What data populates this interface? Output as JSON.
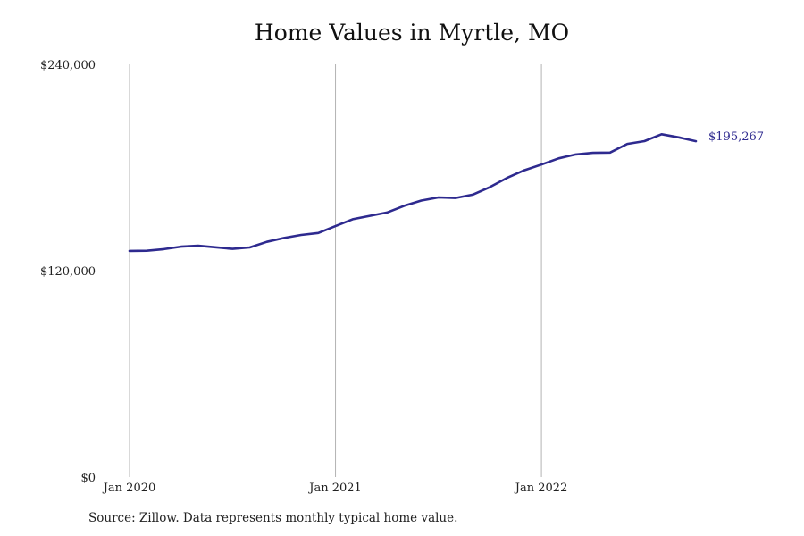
{
  "chart_data": {
    "type": "line",
    "title": "Home Values in Myrtle, MO",
    "xlabel": "",
    "ylabel": "",
    "ylim": [
      0,
      240000
    ],
    "y_ticks": [
      {
        "value": 0,
        "label": "$0"
      },
      {
        "value": 120000,
        "label": "$120,000"
      },
      {
        "value": 240000,
        "label": "$240,000"
      }
    ],
    "x_ticks": [
      {
        "month_index": 0,
        "label": "Jan 2020"
      },
      {
        "month_index": 12,
        "label": "Jan 2021"
      },
      {
        "month_index": 24,
        "label": "Jan 2022"
      }
    ],
    "grid": "vertical lines at x ticks",
    "x_start": "Jan 2020",
    "x_end": "Oct 2022",
    "series": [
      {
        "color": "#2e2a8f",
        "end_label": "$195,267",
        "values": [
          131500,
          131600,
          132500,
          134000,
          134500,
          133600,
          132700,
          133500,
          136800,
          139000,
          140800,
          141900,
          145900,
          149900,
          151900,
          153800,
          157700,
          160800,
          162600,
          162300,
          164200,
          168600,
          174000,
          178400,
          181700,
          185300,
          187600,
          188500,
          188700,
          193700,
          195300,
          199300,
          197500,
          195267
        ]
      }
    ]
  },
  "footer": {
    "source": "Source: Zillow. Data represents monthly typical home value."
  }
}
